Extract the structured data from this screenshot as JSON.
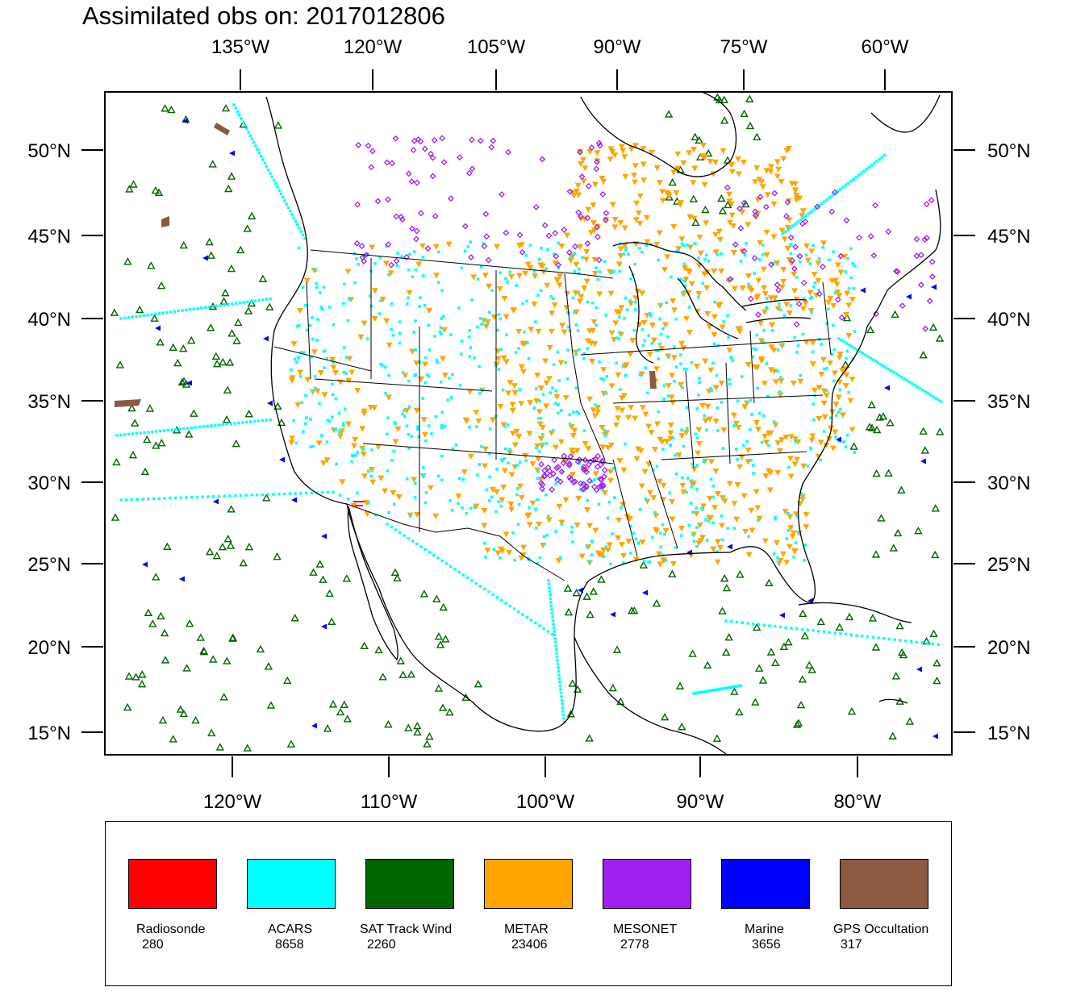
{
  "title": "Assimilated obs on: 2017012806",
  "axes": {
    "top_lon_labels": [
      "135°W",
      "120°W",
      "105°W",
      "90°W",
      "75°W",
      "60°W"
    ],
    "bottom_lon_labels": [
      "120°W",
      "110°W",
      "100°W",
      "90°W",
      "80°W"
    ],
    "lat_labels": [
      "50°N",
      "45°N",
      "40°N",
      "35°N",
      "30°N",
      "25°N",
      "20°N",
      "15°N"
    ]
  },
  "legend": [
    {
      "name": "Radiosonde",
      "count": "280",
      "color": "#ff0000"
    },
    {
      "name": "ACARS",
      "count": "8658",
      "color": "#00ffff"
    },
    {
      "name": "SAT Track Wind",
      "count": "2260",
      "color": "#006400"
    },
    {
      "name": "METAR",
      "count": "23406",
      "color": "#ffa500"
    },
    {
      "name": "MESONET",
      "count": "2778",
      "color": "#a020f0"
    },
    {
      "name": "Marine",
      "count": "3656",
      "color": "#0000ff"
    },
    {
      "name": "GPS Occultation",
      "count": "317",
      "color": "#8b5a42"
    }
  ]
}
